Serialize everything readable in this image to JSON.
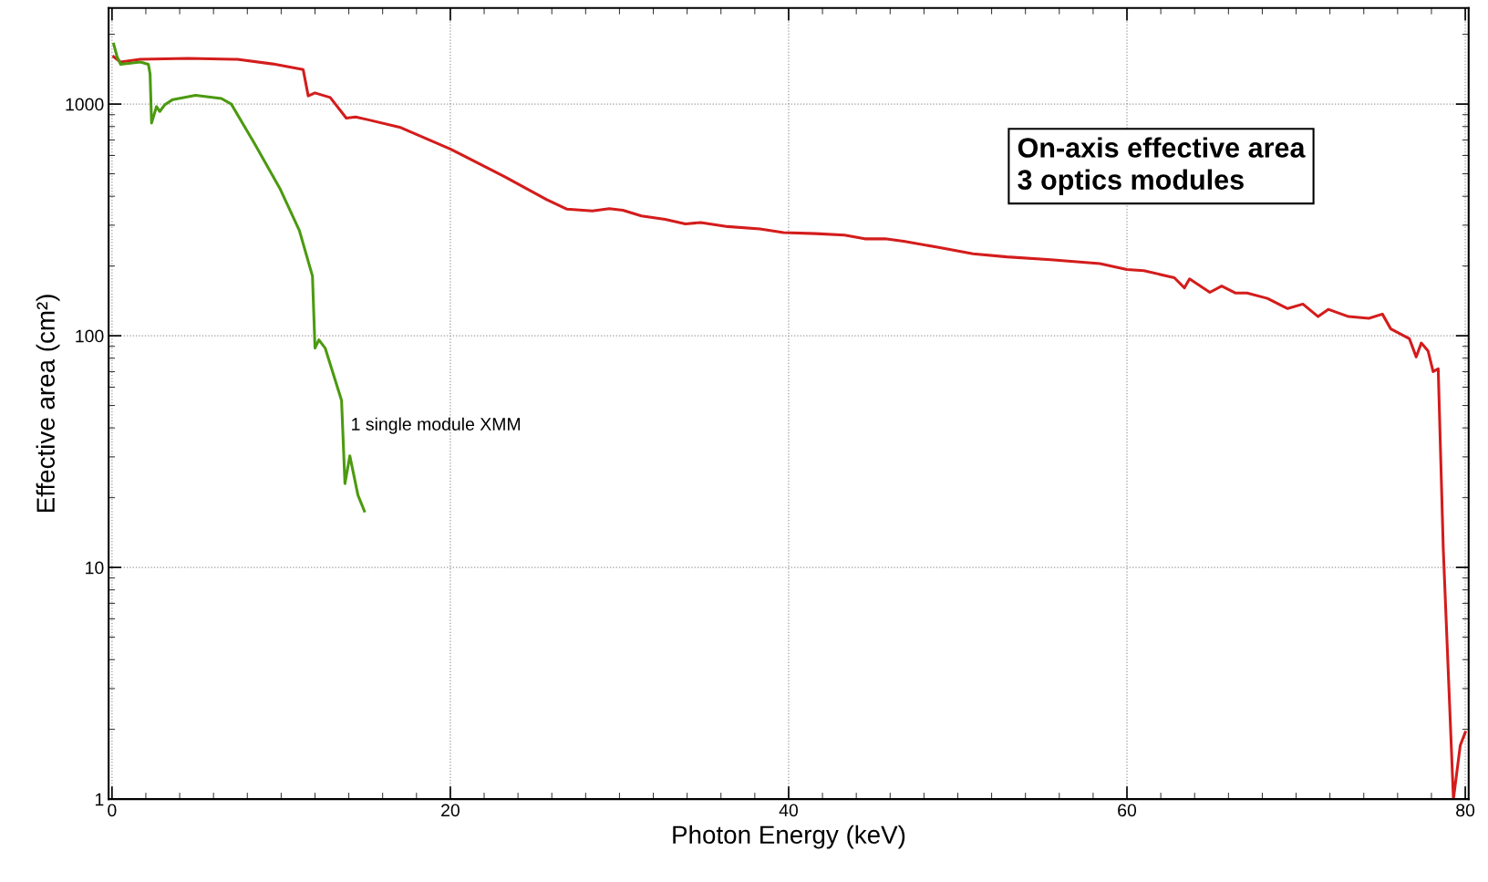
{
  "chart_data": {
    "type": "line",
    "xlabel": "Photon Energy (keV)",
    "ylabel": "Effective area (cm²)",
    "log": "y",
    "xlim": [
      -0.2,
      80.2
    ],
    "ylim": [
      1,
      2600
    ],
    "xticks": [
      0,
      20,
      40,
      60,
      80
    ],
    "yticks": [
      1,
      10,
      100,
      1000
    ],
    "grid": true,
    "line_style": "solid",
    "marker": "none",
    "annotations": [
      "1 single module XMM",
      "On-axis effective area\n3 optics modules"
    ],
    "series": [
      {
        "color": "#d41c1c",
        "x": [
          0.1,
          0.5,
          1.67,
          4.5,
          7.4,
          9.5,
          11.3,
          11.6,
          12.0,
          12.9,
          13.85,
          14.4,
          15.1,
          17.0,
          20.0,
          23.2,
          25.7,
          26.9,
          28.4,
          29.4,
          30.2,
          31.3,
          32.7,
          33.9,
          34.8,
          36.4,
          38.3,
          39.7,
          41.6,
          43.3,
          44.5,
          45.7,
          46.8,
          48.8,
          50.9,
          52.9,
          55.5,
          58.4,
          60.0,
          61.0,
          62.8,
          63.4,
          63.7,
          64.9,
          65.6,
          66.4,
          67.1,
          68.3,
          69.5,
          70.4,
          71.3,
          71.9,
          73.1,
          74.3,
          75.1,
          75.6,
          76.7,
          77.1,
          77.4,
          77.8,
          78.1,
          78.4,
          78.7,
          79.3,
          79.7,
          80.0
        ],
        "values": [
          1600,
          1520,
          1560,
          1575,
          1560,
          1490,
          1410,
          1085,
          1117,
          1068,
          870,
          880,
          857,
          795,
          640,
          486,
          387,
          352,
          346,
          354,
          348,
          329,
          318,
          304,
          308,
          296,
          289,
          279,
          276,
          272,
          262,
          262,
          256,
          241,
          226,
          219,
          213,
          205,
          193,
          191,
          178,
          161,
          176,
          154,
          164,
          153,
          153,
          145,
          131,
          137,
          121,
          130,
          121,
          119,
          124,
          107,
          97,
          81,
          93,
          86,
          70,
          72,
          12,
          1.0,
          1.7,
          1.94
        ]
      },
      {
        "color": "#4c9a10",
        "x": [
          0.1,
          0.3,
          0.51,
          1.67,
          2.15,
          2.25,
          2.34,
          2.63,
          2.82,
          3.11,
          3.59,
          4.94,
          6.47,
          7.05,
          8.39,
          9.92,
          11.08,
          11.85,
          12.0,
          12.23,
          12.6,
          13.57,
          13.77,
          14.06,
          14.54,
          14.92
        ],
        "values": [
          1815,
          1600,
          1485,
          1520,
          1485,
          1350,
          828,
          975,
          929,
          991,
          1046,
          1091,
          1057,
          1000,
          682,
          433,
          284,
          181,
          88.5,
          96,
          88.5,
          52.6,
          23,
          30.3,
          20.5,
          17.5
        ]
      }
    ]
  }
}
